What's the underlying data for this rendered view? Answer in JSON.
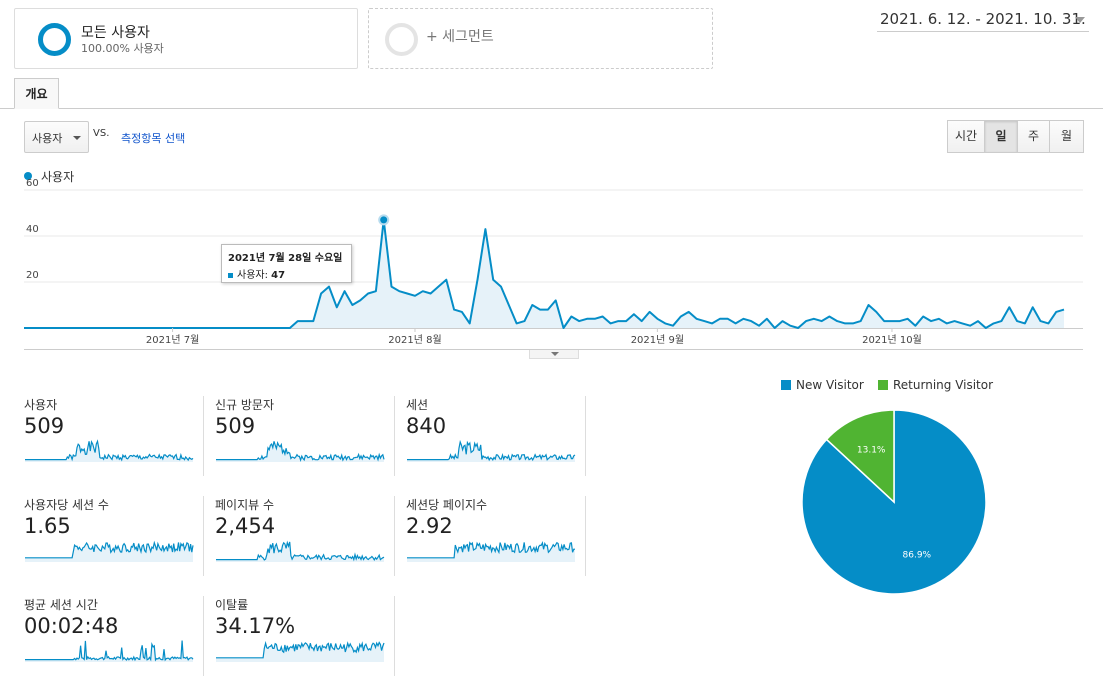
{
  "segments": {
    "all_users_title": "모든 사용자",
    "all_users_sub": "100.00% 사용자",
    "add_segment": "+ 세그먼트"
  },
  "date_range": "2021. 6. 12. - 2021. 10. 31.",
  "tabs": [
    {
      "label": "개요"
    }
  ],
  "controls": {
    "metric_select": "사용자",
    "vs": "VS.",
    "select_metric": "측정항목 선택",
    "granularity": [
      "시간",
      "일",
      "주",
      "월"
    ],
    "granularity_selected": "일"
  },
  "colors": {
    "accent": "#058dc7",
    "returning": "#50b432",
    "link": "#1155cc"
  },
  "chart_data": [
    {
      "type": "area",
      "legend": [
        "사용자"
      ],
      "ylim": [
        0,
        60
      ],
      "yticks": [
        20,
        40,
        60
      ],
      "xtick_labels": [
        {
          "label": "2021년 7월",
          "index": 19
        },
        {
          "label": "2021년 8월",
          "index": 50
        },
        {
          "label": "2021년 9월",
          "index": 81
        },
        {
          "label": "2021년 10월",
          "index": 111
        }
      ],
      "series": [
        {
          "name": "사용자",
          "values": [
            0,
            0,
            0,
            0,
            0,
            0,
            0,
            0,
            0,
            0,
            0,
            0,
            0,
            0,
            0,
            0,
            0,
            0,
            0,
            0,
            0,
            0,
            0,
            0,
            0,
            0,
            0,
            0,
            0,
            0,
            0,
            0,
            0,
            0,
            0,
            3,
            3,
            3,
            15,
            18,
            9,
            16,
            10,
            12,
            15,
            16,
            47,
            18,
            16,
            15,
            14,
            16,
            15,
            18,
            21,
            8,
            7,
            2,
            21,
            43,
            21,
            18,
            10,
            2,
            3,
            10,
            8,
            8,
            12,
            0,
            5,
            3,
            4,
            4,
            5,
            2,
            3,
            3,
            6,
            3,
            7,
            4,
            2,
            1,
            5,
            7,
            4,
            3,
            2,
            4,
            4,
            2,
            4,
            3,
            1,
            4,
            0,
            3,
            1,
            0,
            3,
            4,
            3,
            5,
            3,
            2,
            2,
            3,
            10,
            7,
            3,
            3,
            3,
            4,
            1,
            5,
            3,
            4,
            2,
            3,
            2,
            1,
            3,
            0,
            2,
            3,
            9,
            3,
            2,
            9,
            3,
            2,
            7,
            8
          ]
        }
      ],
      "tooltip": {
        "date": "2021년 7월 28일 수요일",
        "label": "사용자",
        "value": 47,
        "index": 46
      }
    },
    {
      "type": "pie",
      "slices": [
        {
          "label": "New Visitor",
          "value": 86.9,
          "color": "#058dc7"
        },
        {
          "label": "Returning Visitor",
          "value": 13.1,
          "color": "#50b432"
        }
      ]
    }
  ],
  "scorecards": [
    {
      "label": "사용자",
      "value": "509"
    },
    {
      "label": "신규 방문자",
      "value": "509"
    },
    {
      "label": "세션",
      "value": "840"
    },
    {
      "label": "사용자당 세션 수",
      "value": "1.65"
    },
    {
      "label": "페이지뷰 수",
      "value": "2,454"
    },
    {
      "label": "세션당 페이지수",
      "value": "2.92"
    },
    {
      "label": "평균 세션 시간",
      "value": "00:02:48"
    },
    {
      "label": "이탈률",
      "value": "34.17%"
    }
  ]
}
